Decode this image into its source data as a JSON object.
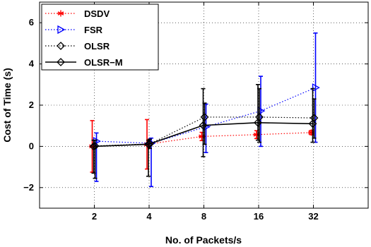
{
  "chart_data": {
    "type": "line",
    "xlabel": "No. of Packets/s",
    "ylabel": "Cost of Time (s)",
    "categories": [
      "2",
      "4",
      "8",
      "16",
      "32"
    ],
    "x_positions": [
      1,
      2,
      3,
      4,
      5
    ],
    "xlim": [
      0,
      6
    ],
    "ylim": [
      -3,
      7
    ],
    "yticks": [
      -2,
      0,
      2,
      4,
      6
    ],
    "ytick_labels": [
      "−2",
      "0",
      "2",
      "4",
      "6"
    ],
    "grid": true,
    "legend_position": "top-left",
    "series": [
      {
        "name": "DSDV",
        "color": "#ff0000",
        "marker": "asterisk",
        "line_style": "dotted",
        "values": [
          0.0,
          0.1,
          0.48,
          0.57,
          0.67
        ],
        "err_low": [
          -1.25,
          -1.1,
          0.28,
          0.38,
          0.57
        ],
        "err_high": [
          1.25,
          1.3,
          0.68,
          0.76,
          0.77
        ]
      },
      {
        "name": "FSR",
        "color": "#0000ff",
        "marker": "triangle-right",
        "line_style": "dotted",
        "values": [
          0.25,
          0.15,
          0.95,
          1.72,
          2.85
        ],
        "err_low": [
          -1.7,
          -1.95,
          -0.3,
          0.0,
          0.2
        ],
        "err_high": [
          0.65,
          0.4,
          2.05,
          3.4,
          5.5
        ]
      },
      {
        "name": "OLSR",
        "color": "#000000",
        "marker": "diamond",
        "line_style": "dotted",
        "values": [
          0.02,
          0.12,
          1.42,
          1.42,
          1.38
        ],
        "err_low": [
          -1.55,
          -0.1,
          0.1,
          0.2,
          0.4
        ],
        "err_high": [
          0.3,
          0.35,
          2.1,
          2.8,
          2.3
        ]
      },
      {
        "name": "OLSR−M",
        "color": "#000000",
        "marker": "diamond",
        "line_style": "solid",
        "values": [
          0.0,
          0.1,
          1.02,
          1.15,
          1.1
        ],
        "err_low": [
          -1.3,
          -1.45,
          -0.5,
          0.3,
          0.2
        ],
        "err_high": [
          0.3,
          0.3,
          2.8,
          3.0,
          2.8
        ]
      }
    ]
  }
}
